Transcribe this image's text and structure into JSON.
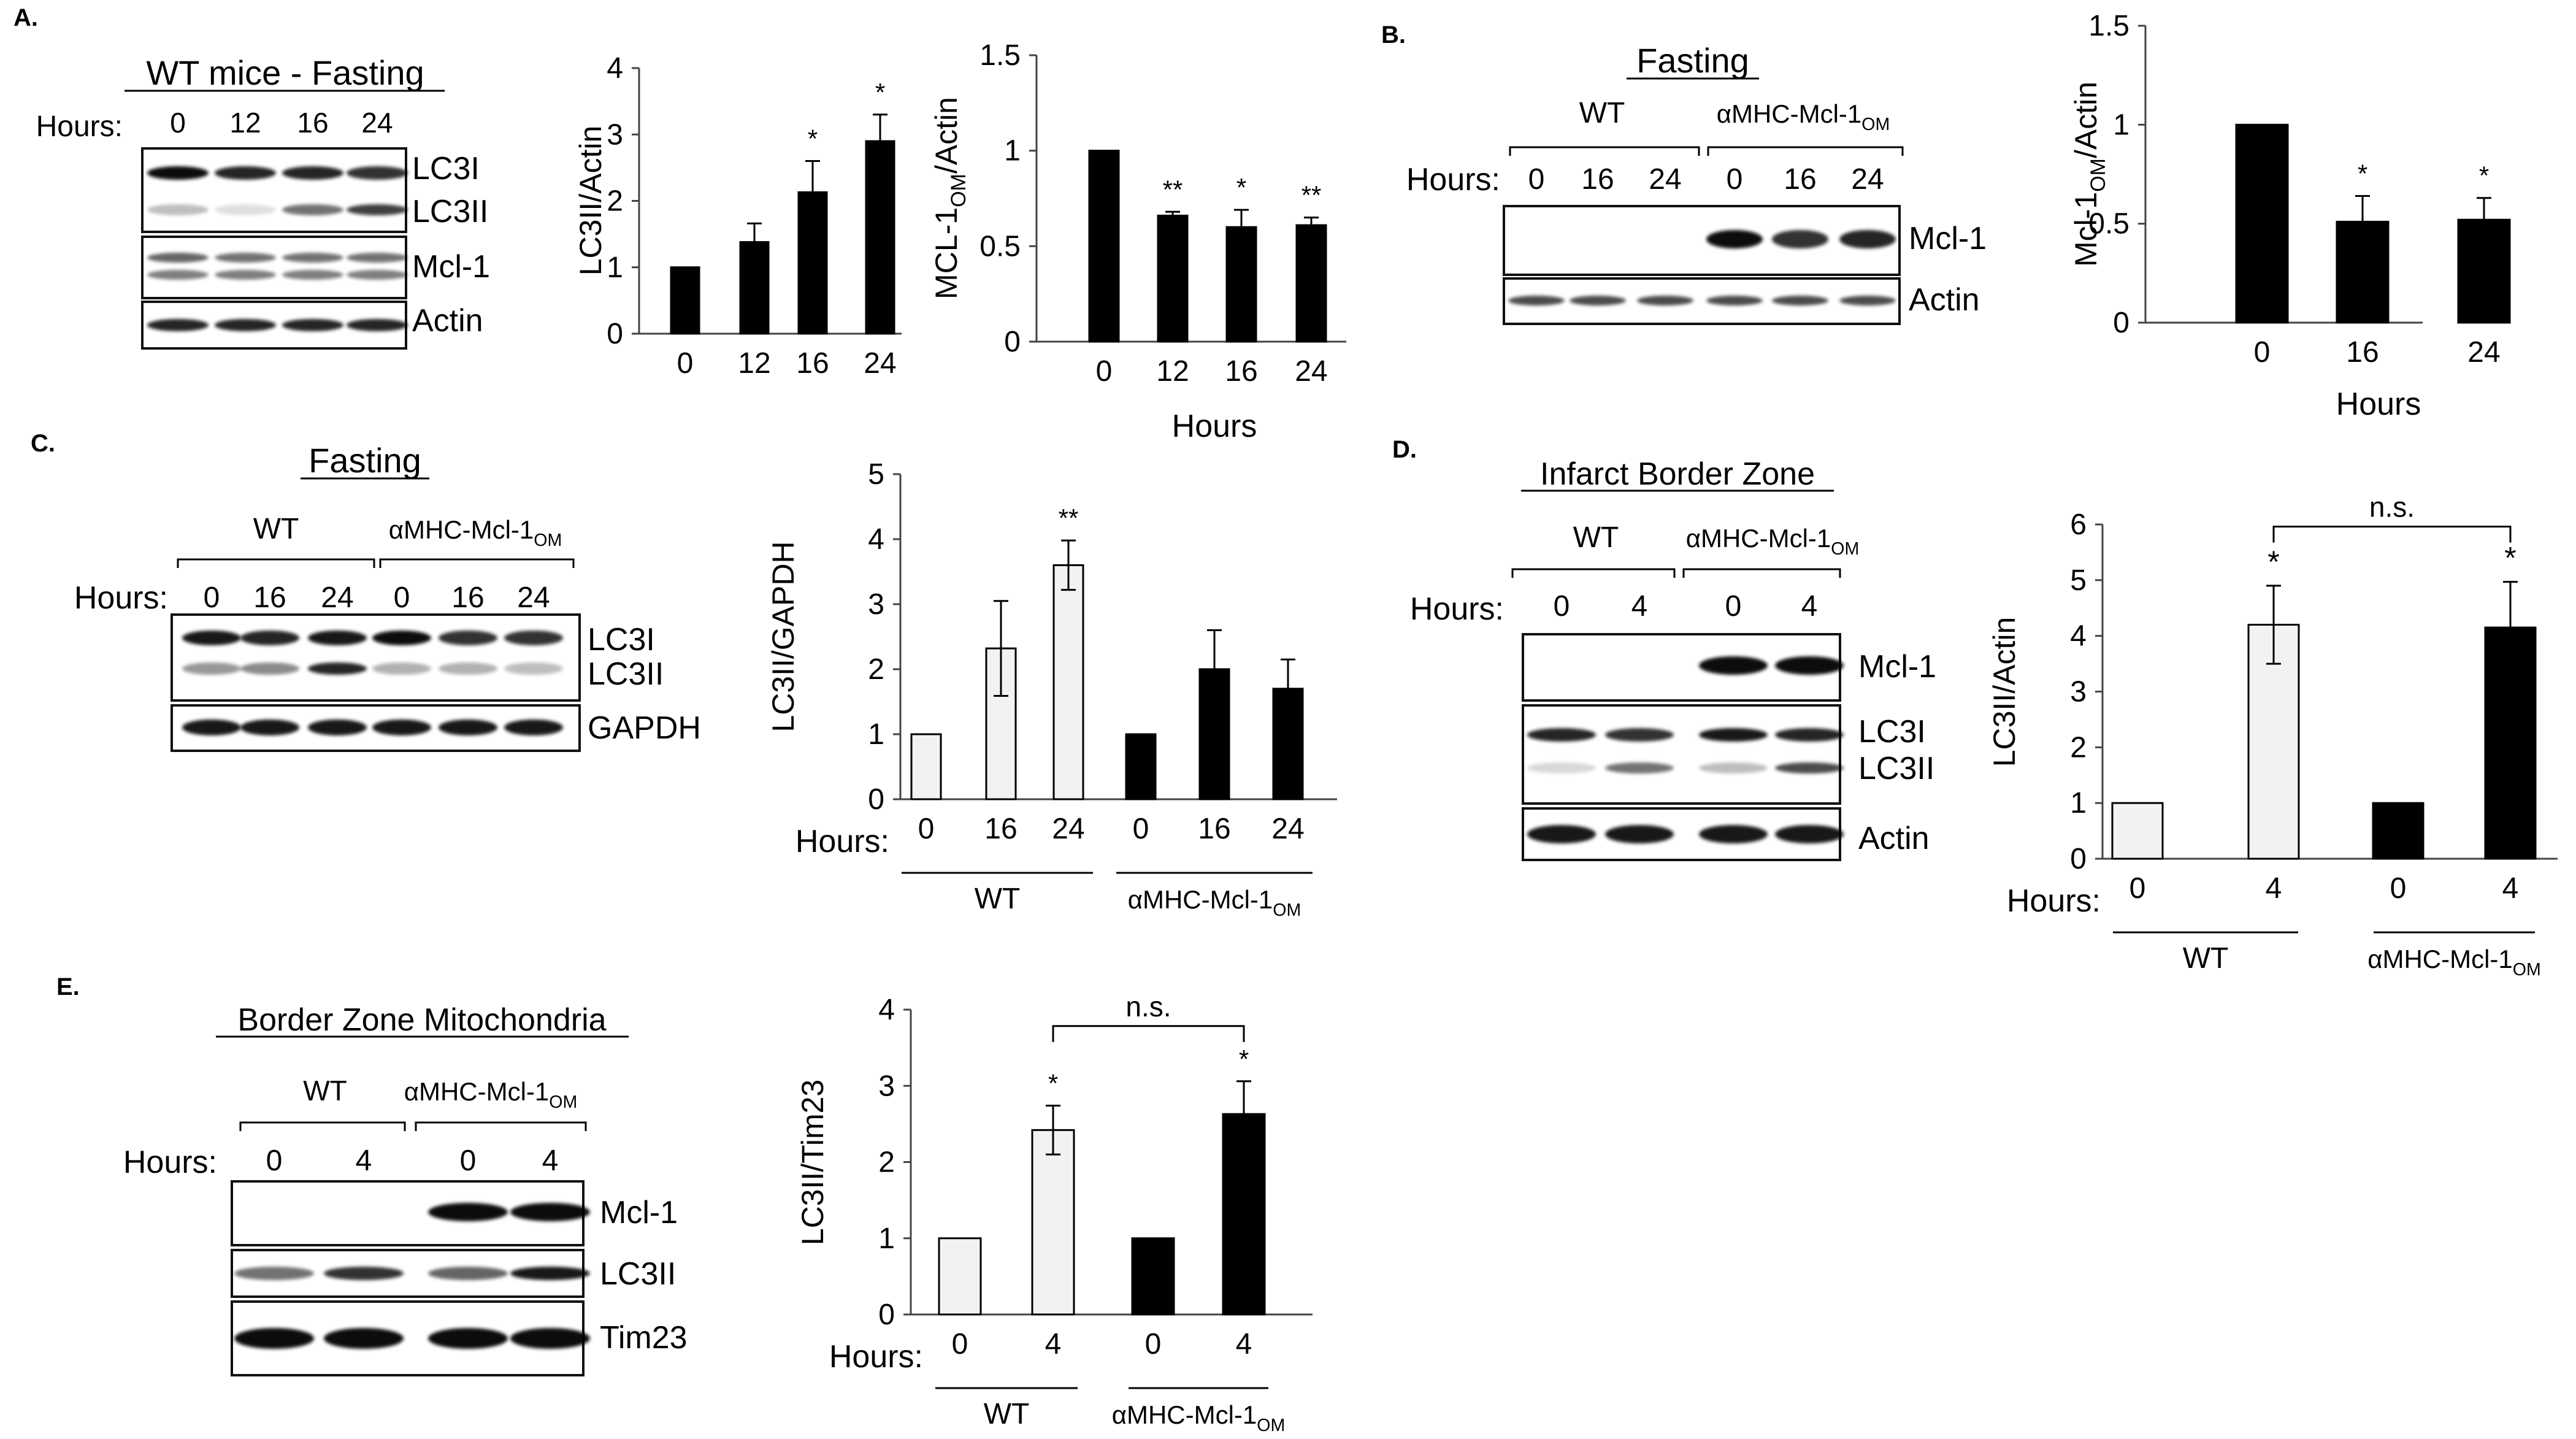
{
  "panels": {
    "A": {
      "label": "A.",
      "blot_title": "WT mice - Fasting",
      "hours_label": "Hours:",
      "lanes": [
        "0",
        "12",
        "16",
        "24"
      ],
      "band_labels": [
        "LC3I",
        "LC3II",
        "Mcl-1",
        "Actin"
      ]
    },
    "B": {
      "label": "B.",
      "blot_title": "Fasting",
      "group_labels": [
        "WT",
        "αMHC-Mcl-1OM"
      ],
      "hours_label": "Hours:",
      "lanes": [
        "0",
        "16",
        "24",
        "0",
        "16",
        "24"
      ],
      "band_labels": [
        "Mcl-1",
        "Actin"
      ]
    },
    "C": {
      "label": "C.",
      "blot_title": "Fasting",
      "group_labels": [
        "WT",
        "αMHC-Mcl-1OM"
      ],
      "hours_label": "Hours:",
      "lanes": [
        "0",
        "16",
        "24",
        "0",
        "16",
        "24"
      ],
      "band_labels": [
        "LC3I",
        "LC3II",
        "GAPDH"
      ]
    },
    "D": {
      "label": "D.",
      "blot_title": "Infarct Border Zone",
      "group_labels": [
        "WT",
        "αMHC-Mcl-1OM"
      ],
      "hours_label": "Hours:",
      "lanes": [
        "0",
        "4",
        "0",
        "4"
      ],
      "band_labels": [
        "Mcl-1",
        "LC3I",
        "LC3II",
        "Actin"
      ]
    },
    "E": {
      "label": "E.",
      "blot_title": "Border Zone Mitochondria",
      "group_labels": [
        "WT",
        "αMHC-Mcl-1OM"
      ],
      "hours_label": "Hours:",
      "lanes": [
        "0",
        "4",
        "0",
        "4"
      ],
      "band_labels": [
        "Mcl-1",
        "LC3II",
        "Tim23"
      ]
    }
  },
  "chart_data": [
    {
      "id": "A1",
      "type": "bar",
      "categories": [
        "0",
        "12",
        "16",
        "24"
      ],
      "values": [
        1.0,
        1.38,
        2.13,
        2.9
      ],
      "errors": [
        0,
        0.28,
        0.47,
        0.4
      ],
      "significance": [
        "",
        "",
        "*",
        "*"
      ],
      "colors": [
        "#000000",
        "#000000",
        "#000000",
        "#000000"
      ],
      "ylabel": "LC3II/Actin",
      "ylabel_sub": "",
      "ylabel_tail": "",
      "xlabel": "",
      "ylim": [
        0,
        4
      ],
      "yticks": [
        "0",
        "1",
        "2",
        "3",
        "4"
      ]
    },
    {
      "id": "A2",
      "type": "bar",
      "categories": [
        "0",
        "12",
        "16",
        "24"
      ],
      "values": [
        1.0,
        0.66,
        0.6,
        0.61
      ],
      "errors": [
        0,
        0.02,
        0.09,
        0.04
      ],
      "significance": [
        "",
        "**",
        "*",
        "**"
      ],
      "colors": [
        "#000000",
        "#000000",
        "#000000",
        "#000000"
      ],
      "ylabel": "MCL-1",
      "ylabel_sub": "OM",
      "ylabel_tail": "/Actin",
      "xlabel": "Hours",
      "ylim": [
        0,
        1.5
      ],
      "yticks": [
        "0",
        "0.5",
        "1",
        "1.5"
      ]
    },
    {
      "id": "B",
      "type": "bar",
      "categories": [
        "0",
        "16",
        "24"
      ],
      "values": [
        1.0,
        0.51,
        0.52
      ],
      "errors": [
        0,
        0.13,
        0.11
      ],
      "significance": [
        "",
        "*",
        "*"
      ],
      "colors": [
        "#000000",
        "#000000",
        "#000000"
      ],
      "ylabel": "Mcl-1",
      "ylabel_sub": "OM",
      "ylabel_tail": "/Actin",
      "xlabel": "Hours",
      "ylim": [
        0,
        1.5
      ],
      "yticks": [
        "0",
        "0.5",
        "1",
        "1.5"
      ]
    },
    {
      "id": "C",
      "type": "bar",
      "categories": [
        "0",
        "16",
        "24",
        "0",
        "16",
        "24"
      ],
      "values": [
        1.0,
        2.32,
        3.6,
        1.0,
        2.0,
        1.7
      ],
      "errors": [
        0,
        0.73,
        0.38,
        0,
        0.6,
        0.45
      ],
      "significance": [
        "",
        "",
        "**",
        "",
        "",
        ""
      ],
      "colors": [
        "#f2f2f2",
        "#f2f2f2",
        "#f2f2f2",
        "#000000",
        "#000000",
        "#000000"
      ],
      "ylabel": "LC3II/GAPDH",
      "ylabel_sub": "",
      "ylabel_tail": "",
      "x_prefix": "Hours:",
      "groups": [
        "WT",
        "αMHC-Mcl-1OM"
      ],
      "ylim": [
        0,
        5
      ],
      "yticks": [
        "0",
        "1",
        "2",
        "3",
        "4",
        "5"
      ]
    },
    {
      "id": "D",
      "type": "bar",
      "categories": [
        "0",
        "4",
        "0",
        "4"
      ],
      "values": [
        1.0,
        4.2,
        1.0,
        4.15
      ],
      "errors": [
        0,
        0.7,
        0,
        0.82
      ],
      "significance": [
        "",
        "*",
        "",
        "*"
      ],
      "bracket": "n.s.",
      "colors": [
        "#f2f2f2",
        "#f2f2f2",
        "#000000",
        "#000000"
      ],
      "ylabel": "LC3II/Actin",
      "ylabel_sub": "",
      "ylabel_tail": "",
      "x_prefix": "Hours:",
      "groups": [
        "WT",
        "αMHC-Mcl-1OM"
      ],
      "ylim": [
        0,
        6
      ],
      "yticks": [
        "0",
        "1",
        "2",
        "3",
        "4",
        "5",
        "6"
      ]
    },
    {
      "id": "E",
      "type": "bar",
      "categories": [
        "0",
        "4",
        "0",
        "4"
      ],
      "values": [
        1.0,
        2.42,
        1.0,
        2.63
      ],
      "errors": [
        0,
        0.32,
        0,
        0.43
      ],
      "significance": [
        "",
        "*",
        "",
        "*"
      ],
      "bracket": "n.s.",
      "colors": [
        "#f2f2f2",
        "#f2f2f2",
        "#000000",
        "#000000"
      ],
      "ylabel": "LC3II/Tim23",
      "ylabel_sub": "",
      "ylabel_tail": "",
      "x_prefix": "Hours:",
      "groups": [
        "WT",
        "αMHC-Mcl-1OM"
      ],
      "ylim": [
        0,
        4
      ],
      "yticks": [
        "0",
        "1",
        "2",
        "3",
        "4"
      ]
    }
  ]
}
